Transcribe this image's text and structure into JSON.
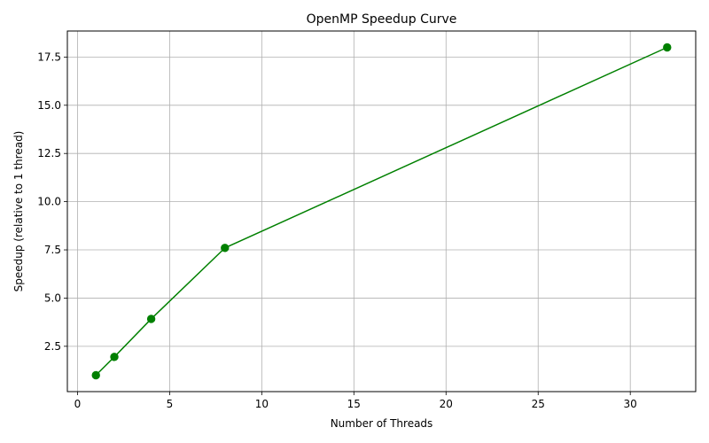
{
  "chart_data": {
    "type": "line",
    "title": "OpenMP Speedup Curve",
    "xlabel": "Number of Threads",
    "ylabel": "Speedup (relative to 1 thread)",
    "x": [
      1,
      2,
      4,
      8,
      32
    ],
    "series": [
      {
        "values": [
          1.0,
          1.95,
          3.92,
          7.6,
          18.0
        ],
        "color": "#008000",
        "marker": "circle"
      }
    ],
    "xlim": [
      -0.55,
      33.55
    ],
    "ylim": [
      0.15,
      18.85
    ],
    "xticks": [
      0,
      5,
      10,
      15,
      20,
      25,
      30
    ],
    "xtick_labels": [
      "0",
      "5",
      "10",
      "15",
      "20",
      "25",
      "30"
    ],
    "yticks": [
      2.5,
      5.0,
      7.5,
      10.0,
      12.5,
      15.0,
      17.5
    ],
    "ytick_labels": [
      "2.5",
      "5.0",
      "7.5",
      "10.0",
      "12.5",
      "15.0",
      "17.5"
    ],
    "grid": true,
    "grid_color": "#b0b0b0",
    "axis_color": "#000000"
  }
}
